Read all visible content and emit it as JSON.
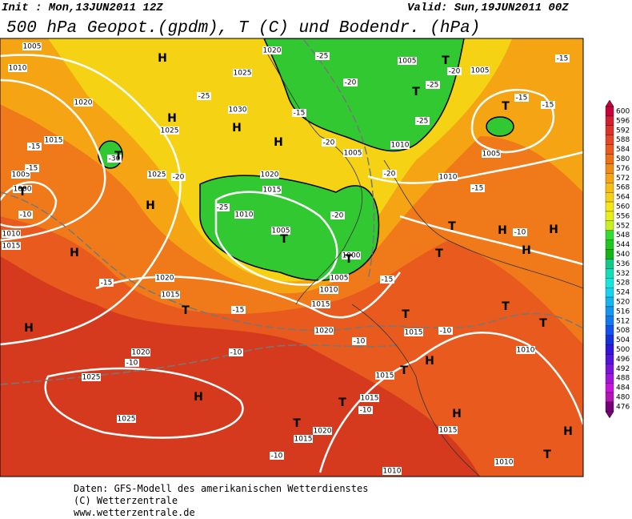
{
  "header": {
    "init": "Init : Mon,13JUN2011 12Z",
    "valid": "Valid: Sun,19JUN2011 00Z",
    "title": "500 hPa Geopot.(gpdm), T (C) und Bodendr. (hPa)"
  },
  "colorbar": {
    "labels": [
      "600",
      "596",
      "592",
      "588",
      "584",
      "580",
      "576",
      "572",
      "568",
      "564",
      "560",
      "556",
      "552",
      "548",
      "544",
      "540",
      "536",
      "532",
      "528",
      "524",
      "520",
      "516",
      "512",
      "508",
      "504",
      "500",
      "496",
      "492",
      "488",
      "484",
      "480",
      "476"
    ],
    "colors": [
      "#c8003c",
      "#d21e32",
      "#dc3228",
      "#e64628",
      "#e85a1e",
      "#ee7014",
      "#f08c14",
      "#f5a514",
      "#f5be14",
      "#f5d214",
      "#f5e614",
      "#e6f014",
      "#c8f01e",
      "#32dc32",
      "#1ec81e",
      "#14b414",
      "#14c88c",
      "#14dcb4",
      "#14e6dc",
      "#14d2f0",
      "#14b4f0",
      "#1496f0",
      "#1478f0",
      "#1450f0",
      "#1432dc",
      "#3214dc",
      "#5014dc",
      "#7814dc",
      "#a014dc",
      "#c814dc",
      "#b414b4",
      "#780078"
    ]
  },
  "map": {
    "pressure_centers": [
      "H",
      "T",
      "H",
      "H",
      "H",
      "T",
      "T",
      "H",
      "T",
      "H",
      "T",
      "T",
      "T",
      "T",
      "H",
      "H",
      "H",
      "T",
      "H",
      "T",
      "T",
      "T",
      "H",
      "T",
      "H",
      "T",
      "T",
      "H",
      "T",
      "H",
      "T"
    ],
    "isobar_labels": [
      "1005",
      "1010",
      "1020",
      "1015",
      "1025",
      "1030",
      "1025",
      "1020",
      "1025",
      "1020",
      "1015",
      "1010",
      "1005",
      "1000",
      "1005",
      "1010",
      "1015",
      "1020",
      "1015",
      "1020",
      "1015",
      "1020",
      "1025",
      "1025",
      "1015",
      "1015",
      "1020",
      "1015",
      "1015",
      "1010",
      "1010",
      "1010",
      "1005",
      "1010",
      "1005",
      "1010",
      "1005",
      "1005",
      "1000",
      "1005",
      "1010",
      "1015"
    ],
    "temperature_labels": [
      "-15",
      "-10",
      "-20",
      "-25",
      "-20",
      "-20",
      "-15",
      "-15",
      "-15",
      "-15",
      "-10",
      "-10",
      "-10",
      "-10",
      "-10",
      "-10",
      "-10",
      "-15",
      "-15",
      "-15",
      "-20",
      "-25",
      "-25",
      "-20",
      "-25",
      "-15",
      "-20",
      "-25",
      "-15",
      "-30"
    ]
  },
  "footer": {
    "line1": "Daten: GFS-Modell des amerikanischen Wetterdienstes",
    "line2": "(C) Wetterzentrale",
    "line3": "www.wetterzentrale.de"
  }
}
